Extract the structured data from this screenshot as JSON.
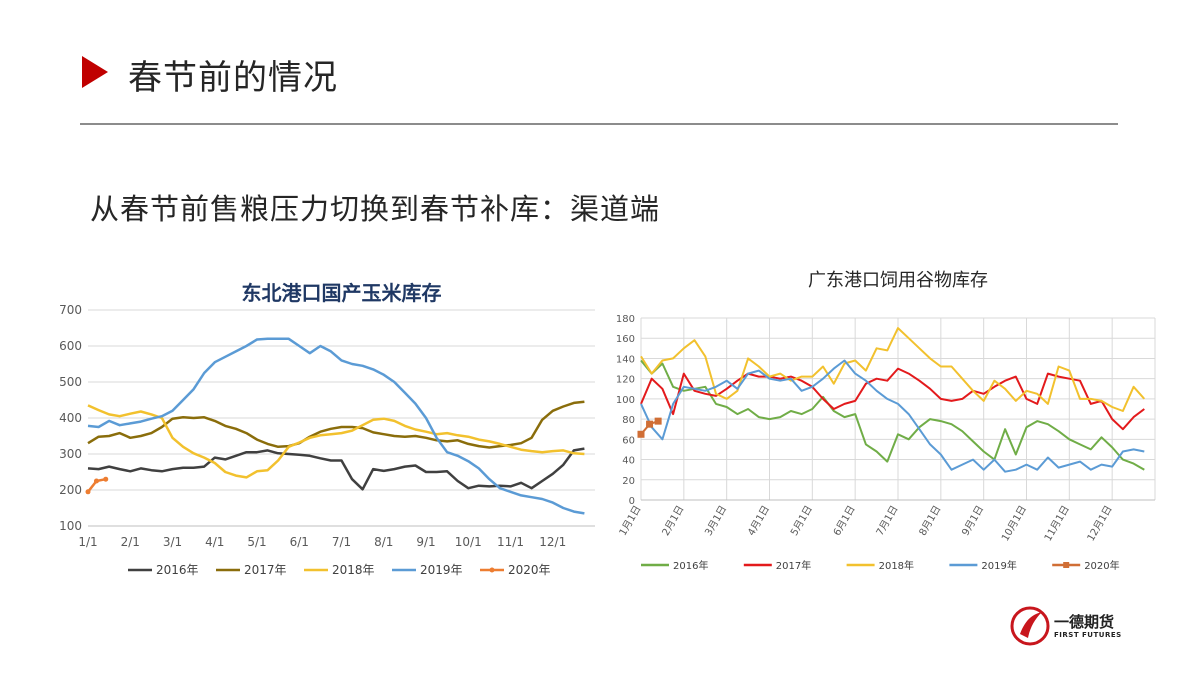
{
  "slide": {
    "title": "春节前的情况",
    "subtitle": "从春节前售粮压力切换到春节补库：渠道端"
  },
  "logo": {
    "name": "一德期货",
    "sub": "FIRST FUTURES"
  },
  "colors": {
    "accent": "#c00000"
  },
  "chart_data": [
    {
      "type": "line",
      "title": "东北港口国产玉米库存",
      "xlabel": "",
      "ylabel": "",
      "ylim": [
        100,
        700
      ],
      "yticks": [
        100,
        200,
        300,
        400,
        500,
        600,
        700
      ],
      "grid": true,
      "legend": "bottom",
      "x_ticks": [
        "1/1",
        "2/1",
        "3/1",
        "4/1",
        "5/1",
        "6/1",
        "7/1",
        "8/1",
        "9/1",
        "10/1",
        "11/1",
        "12/1"
      ],
      "series": [
        {
          "name": "2016年",
          "color": "#404040",
          "x": [
            0,
            0.25,
            0.5,
            0.75,
            1,
            1.25,
            1.5,
            1.75,
            2,
            2.25,
            2.5,
            2.75,
            3,
            3.25,
            3.5,
            3.75,
            4,
            4.25,
            4.5,
            4.75,
            5,
            5.25,
            5.5,
            5.75,
            6,
            6.25,
            6.5,
            6.75,
            7,
            7.25,
            7.5,
            7.75,
            8,
            8.25,
            8.5,
            8.75,
            9,
            9.25,
            9.5,
            9.75,
            10,
            10.25,
            10.5,
            10.75,
            11,
            11.25,
            11.5,
            11.75
          ],
          "values": [
            260,
            258,
            265,
            258,
            252,
            260,
            255,
            252,
            258,
            262,
            262,
            265,
            290,
            285,
            295,
            305,
            305,
            310,
            302,
            300,
            298,
            295,
            288,
            282,
            282,
            230,
            202,
            258,
            253,
            258,
            265,
            268,
            250,
            250,
            252,
            225,
            205,
            212,
            210,
            212,
            210,
            220,
            205,
            225,
            245,
            270,
            310,
            315
          ]
        },
        {
          "name": "2017年",
          "color": "#8a6d0b",
          "x": [
            0,
            0.25,
            0.5,
            0.75,
            1,
            1.25,
            1.5,
            1.75,
            2,
            2.25,
            2.5,
            2.75,
            3,
            3.25,
            3.5,
            3.75,
            4,
            4.25,
            4.5,
            4.75,
            5,
            5.25,
            5.5,
            5.75,
            6,
            6.25,
            6.5,
            6.75,
            7,
            7.25,
            7.5,
            7.75,
            8,
            8.25,
            8.5,
            8.75,
            9,
            9.25,
            9.5,
            9.75,
            10,
            10.25,
            10.5,
            10.75,
            11,
            11.25,
            11.5,
            11.75
          ],
          "values": [
            330,
            348,
            350,
            358,
            345,
            350,
            358,
            375,
            398,
            402,
            400,
            402,
            392,
            378,
            370,
            358,
            340,
            328,
            320,
            322,
            330,
            348,
            362,
            370,
            375,
            375,
            372,
            360,
            355,
            350,
            348,
            350,
            345,
            338,
            335,
            338,
            328,
            322,
            318,
            322,
            325,
            330,
            345,
            395,
            420,
            432,
            442,
            445
          ]
        },
        {
          "name": "2018年",
          "color": "#f2c12e",
          "x": [
            0,
            0.25,
            0.5,
            0.75,
            1,
            1.25,
            1.5,
            1.75,
            2,
            2.25,
            2.5,
            2.75,
            3,
            3.25,
            3.5,
            3.75,
            4,
            4.25,
            4.5,
            4.75,
            5,
            5.25,
            5.5,
            5.75,
            6,
            6.25,
            6.5,
            6.75,
            7,
            7.25,
            7.5,
            7.75,
            8,
            8.25,
            8.5,
            8.75,
            9,
            9.25,
            9.5,
            9.75,
            10,
            10.25,
            10.5,
            10.75,
            11,
            11.25,
            11.5,
            11.75
          ],
          "values": [
            435,
            422,
            410,
            405,
            412,
            418,
            410,
            400,
            345,
            320,
            302,
            290,
            275,
            250,
            240,
            235,
            252,
            255,
            282,
            320,
            332,
            345,
            352,
            355,
            358,
            365,
            380,
            395,
            398,
            392,
            378,
            368,
            362,
            355,
            358,
            352,
            348,
            340,
            335,
            328,
            320,
            312,
            308,
            305,
            308,
            310,
            302,
            300
          ]
        },
        {
          "name": "2019年",
          "color": "#5b9bd5",
          "x": [
            0,
            0.25,
            0.5,
            0.75,
            1,
            1.25,
            1.5,
            1.75,
            2,
            2.25,
            2.5,
            2.75,
            3,
            3.25,
            3.5,
            3.75,
            4,
            4.25,
            4.5,
            4.75,
            5,
            5.25,
            5.5,
            5.75,
            6,
            6.25,
            6.5,
            6.75,
            7,
            7.25,
            7.5,
            7.75,
            8,
            8.25,
            8.5,
            8.75,
            9,
            9.25,
            9.5,
            9.75,
            10,
            10.25,
            10.5,
            10.75,
            11,
            11.25,
            11.5,
            11.75
          ],
          "values": [
            378,
            375,
            392,
            380,
            385,
            390,
            398,
            405,
            420,
            450,
            480,
            525,
            555,
            570,
            585,
            600,
            618,
            620,
            620,
            620,
            600,
            580,
            600,
            585,
            560,
            550,
            545,
            535,
            520,
            500,
            470,
            440,
            400,
            345,
            305,
            295,
            280,
            260,
            230,
            205,
            195,
            185,
            180,
            175,
            165,
            150,
            140,
            135
          ]
        },
        {
          "name": "2020年",
          "color": "#ed7d31",
          "x": [
            0,
            0.2,
            0.42
          ],
          "values": [
            195,
            225,
            230
          ]
        }
      ]
    },
    {
      "type": "line",
      "title": "广东港口饲用谷物库存",
      "xlabel": "",
      "ylabel": "",
      "ylim": [
        0,
        180
      ],
      "yticks": [
        0,
        20,
        40,
        60,
        80,
        100,
        120,
        140,
        160,
        180
      ],
      "grid": true,
      "legend": "bottom",
      "x_ticks": [
        "1月1日",
        "2月1日",
        "3月1日",
        "4月1日",
        "5月1日",
        "6月1日",
        "7月1日",
        "8月1日",
        "9月1日",
        "10月1日",
        "11月1日",
        "12月1日"
      ],
      "series": [
        {
          "name": "2016年",
          "color": "#70ad47",
          "x": [
            0,
            0.25,
            0.5,
            0.75,
            1,
            1.25,
            1.5,
            1.75,
            2,
            2.25,
            2.5,
            2.75,
            3,
            3.25,
            3.5,
            3.75,
            4,
            4.25,
            4.5,
            4.75,
            5,
            5.25,
            5.5,
            5.75,
            6,
            6.25,
            6.5,
            6.75,
            7,
            7.25,
            7.5,
            7.75,
            8,
            8.25,
            8.5,
            8.75,
            9,
            9.25,
            9.5,
            9.75,
            10,
            10.25,
            10.5,
            10.75,
            11,
            11.25,
            11.5,
            11.75
          ],
          "values": [
            138,
            125,
            135,
            112,
            108,
            110,
            112,
            95,
            92,
            85,
            90,
            82,
            80,
            82,
            88,
            85,
            90,
            102,
            88,
            82,
            85,
            55,
            48,
            38,
            65,
            60,
            72,
            80,
            78,
            75,
            68,
            58,
            48,
            40,
            70,
            45,
            72,
            78,
            75,
            68,
            60,
            55,
            50,
            62,
            52,
            40,
            36,
            30
          ]
        },
        {
          "name": "2017年",
          "color": "#e31a1c",
          "x": [
            0,
            0.25,
            0.5,
            0.75,
            1,
            1.25,
            1.5,
            1.75,
            2,
            2.25,
            2.5,
            2.75,
            3,
            3.25,
            3.5,
            3.75,
            4,
            4.25,
            4.5,
            4.75,
            5,
            5.25,
            5.5,
            5.75,
            6,
            6.25,
            6.5,
            6.75,
            7,
            7.25,
            7.5,
            7.75,
            8,
            8.25,
            8.5,
            8.75,
            9,
            9.25,
            9.5,
            9.75,
            10,
            10.25,
            10.5,
            10.75,
            11,
            11.25,
            11.5,
            11.75
          ],
          "values": [
            95,
            120,
            110,
            85,
            125,
            108,
            105,
            103,
            110,
            118,
            125,
            122,
            122,
            120,
            122,
            118,
            112,
            100,
            90,
            95,
            98,
            115,
            120,
            118,
            130,
            125,
            118,
            110,
            100,
            98,
            100,
            108,
            105,
            112,
            118,
            122,
            100,
            95,
            125,
            122,
            120,
            118,
            95,
            98,
            80,
            70,
            82,
            90
          ]
        },
        {
          "name": "2018年",
          "color": "#f2c12e",
          "x": [
            0,
            0.25,
            0.5,
            0.75,
            1,
            1.25,
            1.5,
            1.75,
            2,
            2.25,
            2.5,
            2.75,
            3,
            3.25,
            3.5,
            3.75,
            4,
            4.25,
            4.5,
            4.75,
            5,
            5.25,
            5.5,
            5.75,
            6,
            6.25,
            6.5,
            6.75,
            7,
            7.25,
            7.5,
            7.75,
            8,
            8.25,
            8.5,
            8.75,
            9,
            9.25,
            9.5,
            9.75,
            10,
            10.25,
            10.5,
            10.75,
            11,
            11.25,
            11.5,
            11.75
          ],
          "values": [
            142,
            125,
            138,
            140,
            150,
            158,
            142,
            105,
            100,
            108,
            140,
            132,
            122,
            125,
            118,
            122,
            122,
            132,
            115,
            135,
            138,
            128,
            150,
            148,
            170,
            160,
            150,
            140,
            132,
            132,
            120,
            108,
            98,
            118,
            110,
            98,
            108,
            105,
            95,
            132,
            128,
            100,
            100,
            98,
            92,
            88,
            112,
            100
          ]
        },
        {
          "name": "2019年",
          "color": "#5b9bd5",
          "x": [
            0,
            0.25,
            0.5,
            0.75,
            1,
            1.25,
            1.5,
            1.75,
            2,
            2.25,
            2.5,
            2.75,
            3,
            3.25,
            3.5,
            3.75,
            4,
            4.25,
            4.5,
            4.75,
            5,
            5.25,
            5.5,
            5.75,
            6,
            6.25,
            6.5,
            6.75,
            7,
            7.25,
            7.5,
            7.75,
            8,
            8.25,
            8.5,
            8.75,
            9,
            9.25,
            9.5,
            9.75,
            10,
            10.25,
            10.5,
            10.75,
            11,
            11.25,
            11.5,
            11.75
          ],
          "values": [
            95,
            72,
            60,
            95,
            112,
            110,
            108,
            112,
            118,
            110,
            125,
            128,
            120,
            118,
            120,
            108,
            112,
            120,
            130,
            138,
            125,
            118,
            108,
            100,
            95,
            85,
            70,
            55,
            45,
            30,
            35,
            40,
            30,
            40,
            28,
            30,
            35,
            30,
            42,
            32,
            35,
            38,
            30,
            35,
            33,
            48,
            50,
            48
          ]
        },
        {
          "name": "2020年",
          "color": "#d06e35",
          "x": [
            0,
            0.2,
            0.4
          ],
          "values": [
            65,
            75,
            78
          ]
        }
      ]
    }
  ]
}
